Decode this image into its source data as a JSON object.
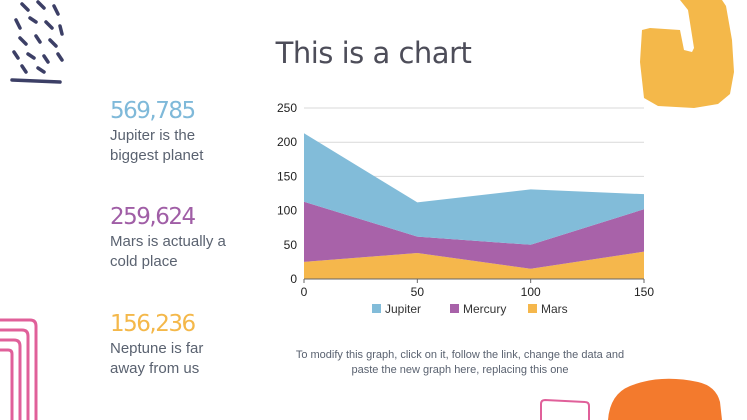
{
  "title": "This is a chart",
  "stats": [
    {
      "value": "569,785",
      "line1": "Jupiter is the",
      "line2": "biggest planet",
      "color": "#7fb9d9"
    },
    {
      "value": "259,624",
      "line1": "Mars is actually a",
      "line2": "cold place",
      "color": "#a05ea6"
    },
    {
      "value": "156,236",
      "line1": "Neptune is far",
      "line2": "away from us",
      "color": "#f4b84a"
    }
  ],
  "note": {
    "line1": "To modify this graph, click on it, follow the link, change the data and",
    "line2": "paste the new graph here, replacing this one"
  },
  "colors": {
    "jupiter": "#82bcd9",
    "mercury": "#a862a9",
    "mars": "#f5b74c",
    "grid": "#d9d9d9",
    "deco_navy": "#3c3f66",
    "deco_pink": "#e0609a",
    "deco_orange": "#f37a2d",
    "deco_yellow": "#f4b84a"
  },
  "chart_data": {
    "type": "area",
    "stacked": true,
    "x": [
      0,
      50,
      100,
      150
    ],
    "xticks": [
      "0",
      "50",
      "100",
      "150"
    ],
    "ylim": [
      0,
      250
    ],
    "yticks": [
      "0",
      "50",
      "100",
      "150",
      "200",
      "250"
    ],
    "series": [
      {
        "name": "Mars",
        "values": [
          25,
          38,
          15,
          40
        ]
      },
      {
        "name": "Mercury",
        "values": [
          88,
          24,
          35,
          62
        ]
      },
      {
        "name": "Jupiter",
        "values": [
          100,
          50,
          81,
          22
        ]
      }
    ],
    "legend": [
      "Jupiter",
      "Mercury",
      "Mars"
    ],
    "legend_position": "bottom"
  }
}
